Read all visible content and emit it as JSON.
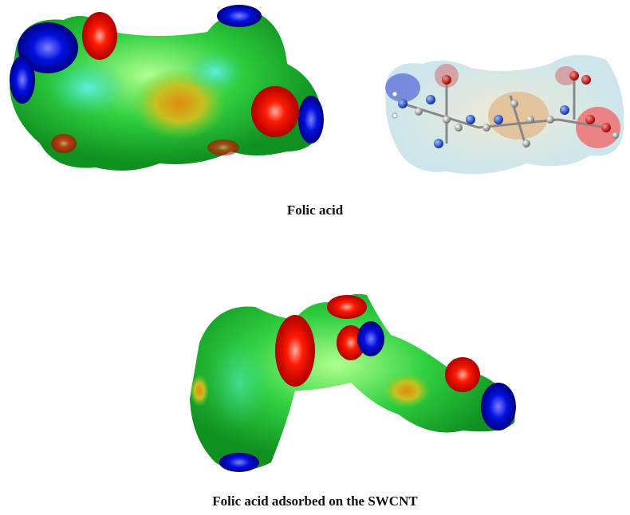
{
  "figure": {
    "top_caption": "Folic acid",
    "bottom_caption": "Folic acid adsorbed on the SWCNT"
  }
}
